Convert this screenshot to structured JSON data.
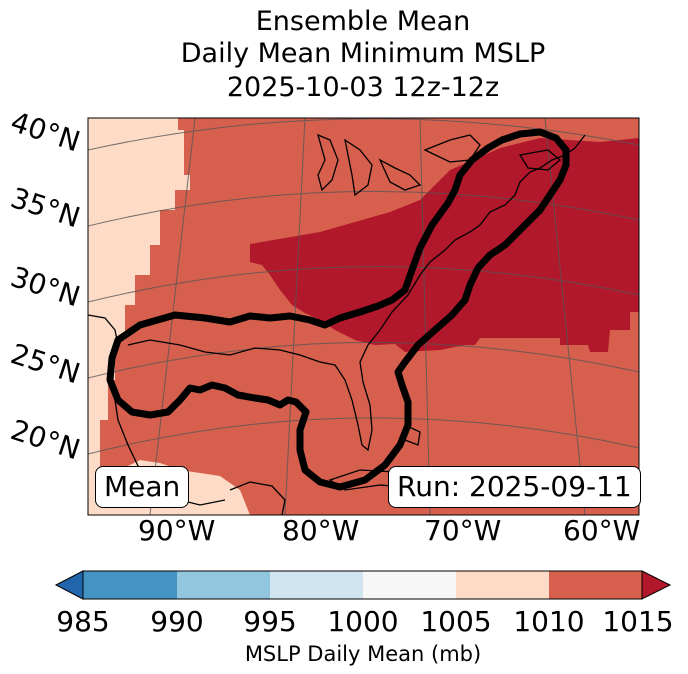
{
  "title": {
    "line1": "Ensemble Mean",
    "line2": "Daily Mean Minimum MSLP",
    "line3": "2025-10-03 12z-12z"
  },
  "map": {
    "lat_labels": [
      "40°N",
      "35°N",
      "30°N",
      "25°N",
      "20°N"
    ],
    "lon_labels": [
      "90°W",
      "80°W",
      "70°W",
      "60°W"
    ],
    "mean_box": "Mean",
    "run_box": "Run: 2025-09-11",
    "field_levels": [
      "1005-1010",
      "1010-1015",
      ">1015"
    ]
  },
  "colorbar": {
    "label": "MSLP Daily Mean (mb)",
    "ticks": [
      "985",
      "990",
      "995",
      "1000",
      "1005",
      "1010",
      "1015"
    ],
    "colors": {
      "below": "#2166ac",
      "b985_990": "#4393c3",
      "b990_995": "#92c5de",
      "b995_1000": "#d1e5f0",
      "b1000_1005": "#f7f7f7",
      "b1005_1010": "#fddbc7",
      "b1010_1015": "#d6604d",
      "above": "#b2182b"
    }
  }
}
